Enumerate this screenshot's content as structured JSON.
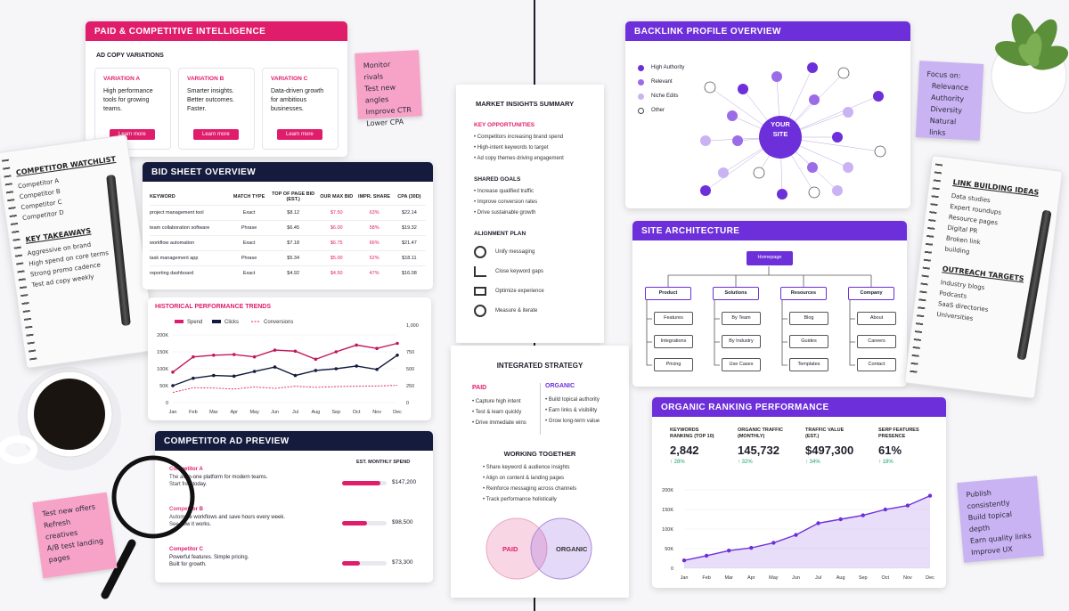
{
  "paid": {
    "title": "PAID & COMPETITIVE INTELLIGENCE",
    "subtitle": "AD COPY VARIATIONS",
    "variations": [
      {
        "title": "VARIATION A",
        "text": "High performance tools for growing teams.",
        "button": "Learn more"
      },
      {
        "title": "VARIATION B",
        "text": "Smarter insights. Better outcomes. Faster.",
        "button": "Learn more"
      },
      {
        "title": "VARIATION C",
        "text": "Data-driven growth for ambitious businesses.",
        "button": "Learn more"
      }
    ]
  },
  "sticky_top": {
    "items": [
      "Monitor rivals",
      "Test new angles",
      "Improve CTR",
      "Lower CPA"
    ]
  },
  "bid_sheet": {
    "title": "BID SHEET OVERVIEW",
    "columns": [
      "KEYWORD",
      "MATCH TYPE",
      "TOP OF PAGE BID (EST.)",
      "OUR MAX BID",
      "IMPR. SHARE",
      "CPA (30D)"
    ],
    "rows": [
      [
        "project management tool",
        "Exact",
        "$8.12",
        "$7.50",
        "63%",
        "$22.14"
      ],
      [
        "team collaboration software",
        "Phrase",
        "$6.45",
        "$6.00",
        "58%",
        "$19.32"
      ],
      [
        "workflow automation",
        "Exact",
        "$7.18",
        "$6.75",
        "66%",
        "$21.47"
      ],
      [
        "task management app",
        "Phrase",
        "$5.34",
        "$5.00",
        "52%",
        "$18.11"
      ],
      [
        "reporting dashboard",
        "Exact",
        "$4.92",
        "$4.50",
        "47%",
        "$16.08"
      ]
    ]
  },
  "watchlist": {
    "title": "COMPETITOR WATCHLIST",
    "items": [
      "Competitor A",
      "Competitor B",
      "Competitor C",
      "Competitor D"
    ],
    "takeaways_title": "KEY TAKEAWAYS",
    "takeaways": [
      "Aggressive on brand",
      "High spend on core terms",
      "Strong promo cadence",
      "Test ad copy weekly"
    ]
  },
  "chart_data": [
    {
      "type": "line",
      "title": "HISTORICAL PERFORMANCE TRENDS",
      "x": [
        "Jan",
        "Feb",
        "Mar",
        "Apr",
        "May",
        "Jun",
        "Jul",
        "Aug",
        "Sep",
        "Oct",
        "Nov",
        "Dec"
      ],
      "series": [
        {
          "name": "Spend",
          "axis": "left",
          "values": [
            90000,
            135000,
            140000,
            142000,
            135000,
            155000,
            152000,
            128000,
            150000,
            170000,
            160000,
            175000
          ]
        },
        {
          "name": "Clicks",
          "axis": "left",
          "values": [
            50000,
            72000,
            80000,
            78000,
            92000,
            105000,
            80000,
            95000,
            100000,
            108000,
            98000,
            140000
          ]
        },
        {
          "name": "Conversions",
          "axis": "right",
          "values": [
            150,
            220,
            215,
            200,
            230,
            210,
            240,
            225,
            235,
            240,
            245,
            255
          ]
        }
      ],
      "yticks_left": [
        "0",
        "50K",
        "100K",
        "150K",
        "200K"
      ],
      "yticks_right": [
        "0",
        "250",
        "500",
        "750",
        "1,000"
      ],
      "ylim": [
        0,
        200000
      ]
    },
    {
      "type": "area",
      "title": "ORGANIC RANKING PERFORMANCE",
      "x": [
        "Jan",
        "Feb",
        "Mar",
        "Apr",
        "May",
        "Jun",
        "Jul",
        "Aug",
        "Sep",
        "Oct",
        "Nov",
        "Dec"
      ],
      "values": [
        20000,
        32000,
        45000,
        52000,
        65000,
        85000,
        115000,
        125000,
        135000,
        150000,
        160000,
        185000
      ],
      "yticks": [
        "0",
        "50K",
        "100K",
        "150K",
        "200K"
      ],
      "ylim": [
        0,
        200000
      ]
    }
  ],
  "ad_preview": {
    "title": "COMPETITOR AD PREVIEW",
    "spend_label": "EST. MONTHLY SPEND",
    "items": [
      {
        "name": "Competitor A",
        "text1": "The all-in-one platform for modern teams.",
        "text2": "Start free today.",
        "spend": "$147,200",
        "share": 0.85
      },
      {
        "name": "Competitor B",
        "text1": "Automate workflows and save hours every week.",
        "text2": "See how it works.",
        "spend": "$98,500",
        "share": 0.55
      },
      {
        "name": "Competitor C",
        "text1": "Powerful features. Simple pricing.",
        "text2": "Built for growth.",
        "spend": "$73,300",
        "share": 0.4
      }
    ]
  },
  "sticky_bottom": {
    "items": [
      "Test new offers",
      "Refresh creatives",
      "A/B test landing pages"
    ]
  },
  "insights": {
    "title": "MARKET INSIGHTS SUMMARY",
    "opp_title": "KEY OPPORTUNITIES",
    "opps": [
      "Competitors increasing brand spend",
      "High-intent keywords to target",
      "Ad copy themes driving engagement"
    ],
    "goals_title": "SHARED GOALS",
    "goals": [
      "Increase qualified traffic",
      "Improve conversion rates",
      "Drive sustainable growth"
    ],
    "plan_title": "ALIGNMENT PLAN",
    "plan": [
      "Unify messaging",
      "Close keyword gaps",
      "Optimize experience",
      "Measure & iterate"
    ]
  },
  "strategy": {
    "title": "INTEGRATED STRATEGY",
    "paid_title": "PAID",
    "paid_items": [
      "Capture high intent",
      "Test & learn quickly",
      "Drive immediate wins"
    ],
    "organic_title": "ORGANIC",
    "organic_items": [
      "Build topical authority",
      "Earn links & visibility",
      "Grow long-term value"
    ],
    "together_title": "WORKING TOGETHER",
    "together_items": [
      "Share keyword & audience insights",
      "Align on content & landing pages",
      "Reinforce messaging across channels",
      "Track performance holistically"
    ],
    "venn_left": "PAID",
    "venn_right": "ORGANIC"
  },
  "backlink": {
    "title": "BACKLINK PROFILE OVERVIEW",
    "legend": [
      "High Authority",
      "Relevant",
      "Niche Edits",
      "Other"
    ],
    "center": [
      "YOUR",
      "SITE"
    ],
    "colors": {
      "high": "#6d2fd9",
      "relevant": "#9b6ce8",
      "niche": "#c9b3f2",
      "other": "#ffffff"
    }
  },
  "sticky_right": {
    "title": "Focus on:",
    "items": [
      "Relevance",
      "Authority",
      "Diversity",
      "Natural links"
    ]
  },
  "architecture": {
    "title": "SITE ARCHITECTURE",
    "root": "Homepage",
    "branches": [
      {
        "label": "Product",
        "children": [
          "Features",
          "Integrations",
          "Pricing"
        ]
      },
      {
        "label": "Solutions",
        "children": [
          "By Team",
          "By Industry",
          "Use Cases"
        ]
      },
      {
        "label": "Resources",
        "children": [
          "Blog",
          "Guides",
          "Templates"
        ]
      },
      {
        "label": "Company",
        "children": [
          "About",
          "Careers",
          "Contact"
        ]
      }
    ]
  },
  "linkbuilding": {
    "title": "LINK BUILDING IDEAS",
    "items": [
      "Data studies",
      "Expert roundups",
      "Resource pages",
      "Digital PR",
      "Broken link building"
    ],
    "targets_title": "OUTREACH TARGETS",
    "targets": [
      "Industry blogs",
      "Podcasts",
      "SaaS directories",
      "Universities"
    ]
  },
  "organic": {
    "metrics": [
      {
        "label1": "KEYWORDS",
        "label2": "RANKING (TOP 10)",
        "value": "2,842",
        "change": "↑ 28%"
      },
      {
        "label1": "ORGANIC TRAFFIC",
        "label2": "(MONTHLY)",
        "value": "145,732",
        "change": "↑ 32%"
      },
      {
        "label1": "TRAFFIC VALUE",
        "label2": "(EST.)",
        "value": "$497,300",
        "change": "↑ 34%"
      },
      {
        "label1": "SERP FEATURES",
        "label2": "PRESENCE",
        "value": "61%",
        "change": "↑ 18%"
      }
    ]
  },
  "sticky_br": {
    "items": [
      "Publish consistently",
      "Build topical depth",
      "Earn quality links",
      "Improve UX"
    ]
  }
}
